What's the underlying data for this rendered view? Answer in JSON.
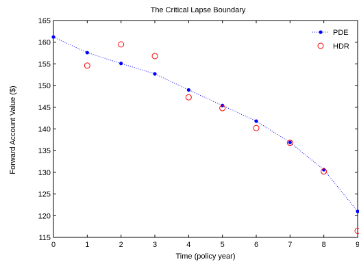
{
  "chart_data": {
    "type": "scatter",
    "title": "The Critical Lapse Boundary",
    "xlabel": "Time (policy year)",
    "ylabel": "Forward Account Value ($)",
    "xlim": [
      0,
      9
    ],
    "ylim": [
      115,
      165
    ],
    "x_ticks": [
      "0",
      "1",
      "2",
      "3",
      "4",
      "5",
      "6",
      "7",
      "8",
      "9"
    ],
    "y_ticks": [
      "115",
      "120",
      "125",
      "130",
      "135",
      "140",
      "145",
      "150",
      "155",
      "160",
      "165"
    ],
    "grid": false,
    "legend_position": "top-right",
    "series": [
      {
        "name": "PDE",
        "marker": "filled-dot",
        "line": "dotted",
        "color": "#0000ff",
        "x": [
          0,
          1,
          2,
          3,
          4,
          5,
          6,
          7,
          8,
          9
        ],
        "y": [
          161.2,
          157.6,
          155.1,
          152.7,
          149.0,
          145.4,
          141.8,
          136.9,
          130.6,
          121.0
        ]
      },
      {
        "name": "HDR",
        "marker": "open-circle",
        "line": "none",
        "color": "#ff0000",
        "x": [
          1,
          2,
          3,
          4,
          5,
          6,
          7,
          8,
          9
        ],
        "y": [
          154.6,
          159.5,
          156.8,
          147.3,
          144.8,
          140.2,
          136.8,
          130.2,
          116.5
        ]
      }
    ]
  }
}
